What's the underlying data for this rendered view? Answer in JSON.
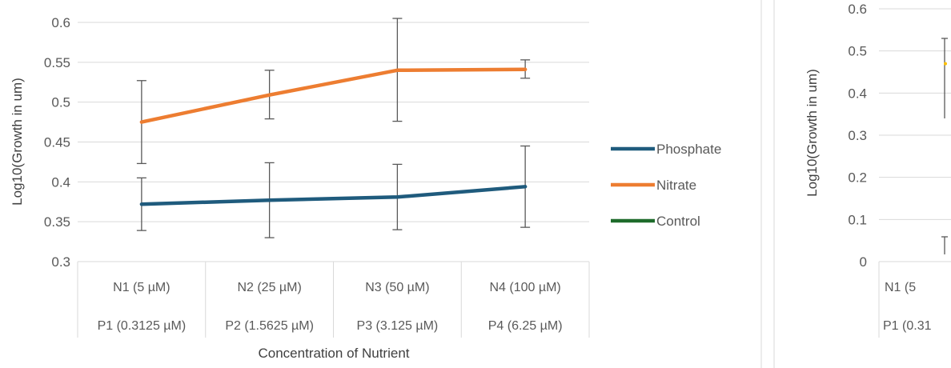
{
  "chart_data": [
    {
      "type": "line",
      "title": "",
      "xlabel": "Concentration of Nutrient",
      "ylabel": "Log10(Growth in um)",
      "ylim": [
        0.3,
        0.6
      ],
      "yticks": [
        "0.3",
        "0.35",
        "0.4",
        "0.45",
        "0.5",
        "0.55",
        "0.6"
      ],
      "grid": true,
      "legend_position": "right",
      "categories_row1": [
        "N1 (5 µM)",
        "N2 (25 µM)",
        "N3 (50 µM)",
        "N4 (100 µM)"
      ],
      "categories_row2": [
        "P1 (0.3125 µM)",
        "P2 (1.5625 µM)",
        "P3 (3.125 µM)",
        "P4 (6.25 µM)"
      ],
      "series": [
        {
          "name": "Phosphate",
          "color": "#1f5b7d",
          "values": [
            0.372,
            0.377,
            0.381,
            0.394
          ],
          "error_low": [
            0.339,
            0.33,
            0.34,
            0.343
          ],
          "error_high": [
            0.405,
            0.424,
            0.422,
            0.445
          ]
        },
        {
          "name": "Nitrate",
          "color": "#ed7d31",
          "values": [
            0.475,
            0.509,
            0.54,
            0.541
          ],
          "error_low": [
            0.423,
            0.479,
            0.476,
            0.53
          ],
          "error_high": [
            0.527,
            0.54,
            0.605,
            0.553
          ]
        },
        {
          "name": "Control",
          "color": "#1e6b2b",
          "values": [],
          "error_low": [],
          "error_high": []
        }
      ]
    },
    {
      "type": "line",
      "title": "",
      "xlabel": "",
      "ylabel": "Log10(Growth in um)",
      "ylim": [
        0,
        0.6
      ],
      "yticks": [
        "0",
        "0.1",
        "0.2",
        "0.3",
        "0.4",
        "0.5",
        "0.6"
      ],
      "grid": true,
      "categories_row1": [
        "N1 (5"
      ],
      "categories_row2": [
        "P1 (0.31"
      ],
      "series": [
        {
          "name": "",
          "color": "#ffc000",
          "values": [
            0.5
          ]
        }
      ]
    }
  ]
}
